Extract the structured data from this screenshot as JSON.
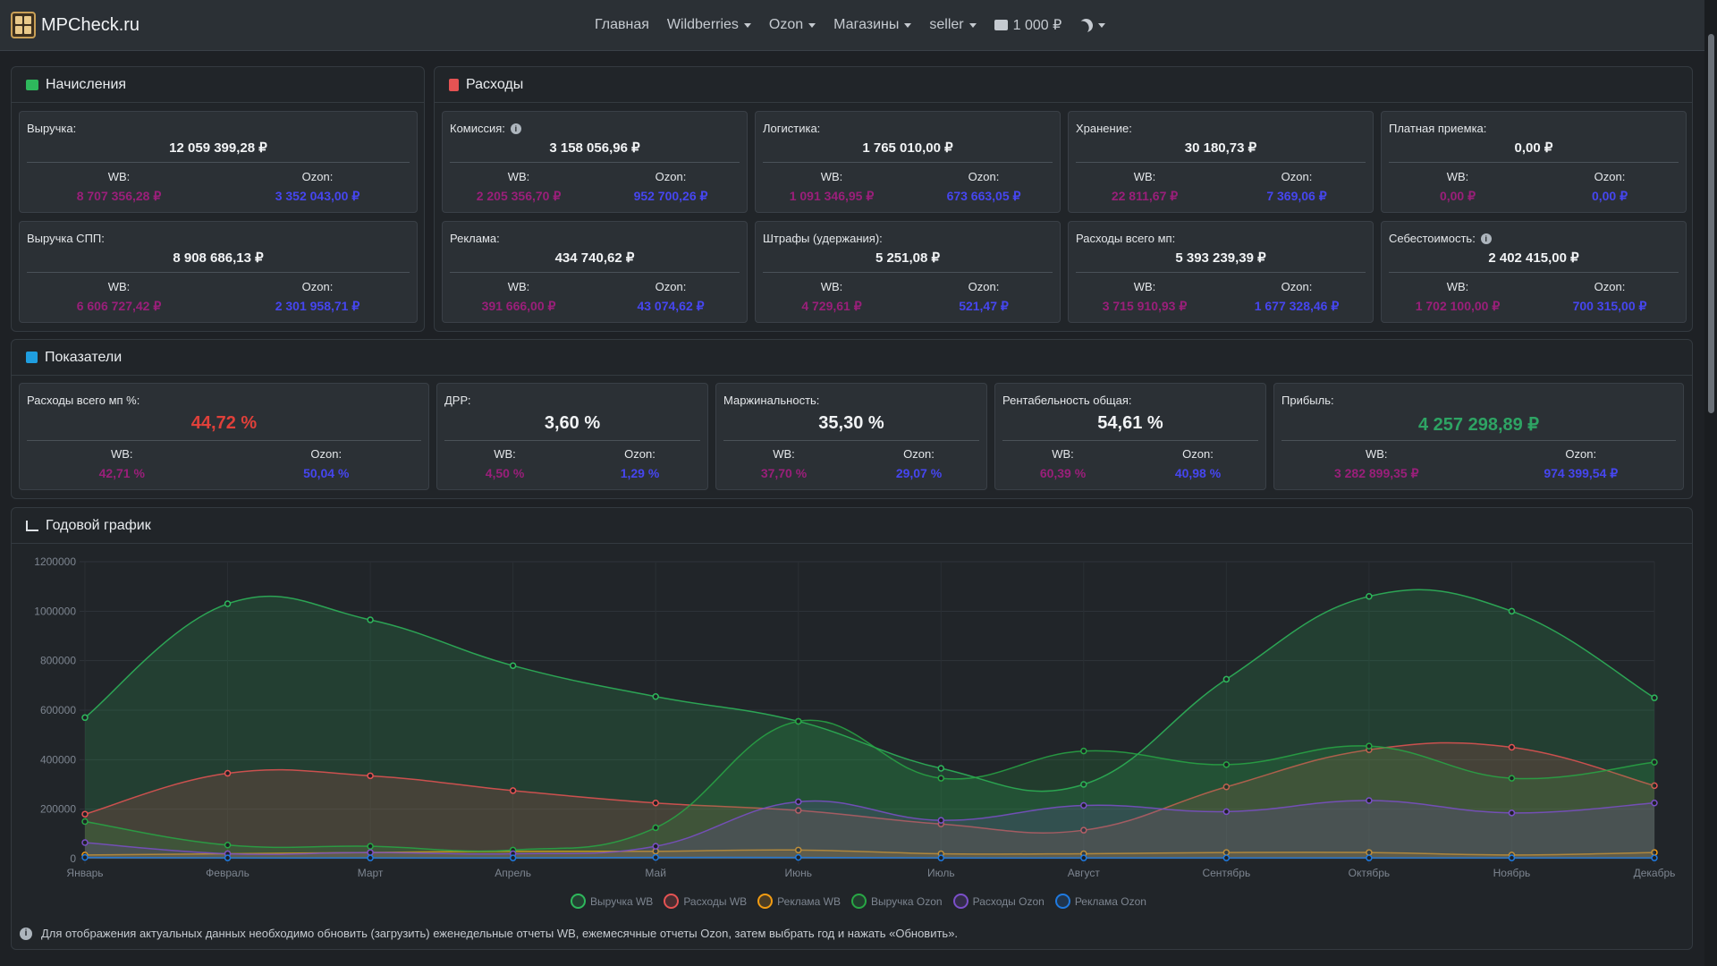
{
  "nav": {
    "brand": "MPCheck.ru",
    "items": [
      {
        "label": "Главная",
        "caret": false
      },
      {
        "label": "Wildberries",
        "caret": true
      },
      {
        "label": "Ozon",
        "caret": true
      },
      {
        "label": "Магазины",
        "caret": true
      },
      {
        "label": "seller",
        "caret": true
      }
    ],
    "balance": "1 000 ₽"
  },
  "accruals": {
    "title": "Начисления",
    "cards": [
      {
        "label": "Выручка:",
        "total": "12 059 399,28 ₽",
        "wb_label": "WB:",
        "wb": "8 707 356,28 ₽",
        "oz_label": "Ozon:",
        "oz": "3 352 043,00 ₽"
      },
      {
        "label": "Выручка СПП:",
        "total": "8 908 686,13 ₽",
        "wb_label": "WB:",
        "wb": "6 606 727,42 ₽",
        "oz_label": "Ozon:",
        "oz": "2 301 958,71 ₽"
      }
    ]
  },
  "expenses": {
    "title": "Расходы",
    "cards": [
      {
        "label": "Комиссия:",
        "info": true,
        "total": "3 158 056,96 ₽",
        "wb_label": "WB:",
        "wb": "2 205 356,70 ₽",
        "oz_label": "Ozon:",
        "oz": "952 700,26 ₽"
      },
      {
        "label": "Логистика:",
        "total": "1 765 010,00 ₽",
        "wb_label": "WB:",
        "wb": "1 091 346,95 ₽",
        "oz_label": "Ozon:",
        "oz": "673 663,05 ₽"
      },
      {
        "label": "Хранение:",
        "total": "30 180,73 ₽",
        "wb_label": "WB:",
        "wb": "22 811,67 ₽",
        "oz_label": "Ozon:",
        "oz": "7 369,06 ₽"
      },
      {
        "label": "Платная приемка:",
        "total": "0,00 ₽",
        "wb_label": "WB:",
        "wb": "0,00 ₽",
        "oz_label": "Ozon:",
        "oz": "0,00 ₽"
      },
      {
        "label": "Реклама:",
        "total": "434 740,62 ₽",
        "wb_label": "WB:",
        "wb": "391 666,00 ₽",
        "oz_label": "Ozon:",
        "oz": "43 074,62 ₽"
      },
      {
        "label": "Штрафы (удержания):",
        "total": "5 251,08 ₽",
        "wb_label": "WB:",
        "wb": "4 729,61 ₽",
        "oz_label": "Ozon:",
        "oz": "521,47 ₽"
      },
      {
        "label": "Расходы всего мп:",
        "total": "5 393 239,39 ₽",
        "wb_label": "WB:",
        "wb": "3 715 910,93 ₽",
        "oz_label": "Ozon:",
        "oz": "1 677 328,46 ₽"
      },
      {
        "label": "Себестоимость:",
        "info": true,
        "total": "2 402 415,00 ₽",
        "wb_label": "WB:",
        "wb": "1 702 100,00 ₽",
        "oz_label": "Ozon:",
        "oz": "700 315,00 ₽"
      }
    ]
  },
  "indicators": {
    "title": "Показатели",
    "cards": [
      {
        "label": "Расходы всего мп %:",
        "total": "44,72 %",
        "tone": "red",
        "wb_label": "WB:",
        "wb": "42,71 %",
        "oz_label": "Ozon:",
        "oz": "50,04 %"
      },
      {
        "label": "ДРР:",
        "total": "3,60 %",
        "tone": "",
        "wb_label": "WB:",
        "wb": "4,50 %",
        "oz_label": "Ozon:",
        "oz": "1,29 %"
      },
      {
        "label": "Маржинальность:",
        "total": "35,30 %",
        "tone": "",
        "wb_label": "WB:",
        "wb": "37,70 %",
        "oz_label": "Ozon:",
        "oz": "29,07 %"
      },
      {
        "label": "Рентабельность общая:",
        "total": "54,61 %",
        "tone": "",
        "wb_label": "WB:",
        "wb": "60,39 %",
        "oz_label": "Ozon:",
        "oz": "40,98 %"
      },
      {
        "label": "Прибыль:",
        "total": "4 257 298,89 ₽",
        "tone": "green",
        "wb_label": "WB:",
        "wb": "3 282 899,35 ₽",
        "oz_label": "Ozon:",
        "oz": "974 399,54 ₽"
      }
    ]
  },
  "annual": {
    "title": "Годовой график",
    "footnote": "Для отображения актуальных данных необходимо обновить (загрузить) еженедельные отчеты WB, ежемесячные отчеты Ozon, затем выбрать год и нажать «Обновить»."
  },
  "chart_data": {
    "type": "area",
    "categories": [
      "Январь",
      "Февраль",
      "Март",
      "Апрель",
      "Май",
      "Июнь",
      "Июль",
      "Август",
      "Сентябрь",
      "Октябрь",
      "Ноябрь",
      "Декабрь"
    ],
    "yticks": [
      0,
      200000,
      400000,
      600000,
      800000,
      1000000,
      1200000
    ],
    "ylim": [
      0,
      1200000
    ],
    "grid": true,
    "legend_position": "bottom",
    "series": [
      {
        "name": "Выручка WB",
        "color": "#2eb85c",
        "values": [
          570000,
          1030000,
          965000,
          780000,
          655000,
          555000,
          365000,
          300000,
          725000,
          1060000,
          1000000,
          650000
        ]
      },
      {
        "name": "Расходы WB",
        "color": "#e55353",
        "values": [
          180000,
          345000,
          335000,
          275000,
          225000,
          195000,
          140000,
          115000,
          290000,
          440000,
          450000,
          295000
        ]
      },
      {
        "name": "Реклама WB",
        "color": "#f39c12",
        "values": [
          15000,
          20000,
          25000,
          30000,
          30000,
          35000,
          20000,
          20000,
          25000,
          25000,
          15000,
          25000
        ]
      },
      {
        "name": "Выручка Ozon",
        "color": "#28a745",
        "values": [
          150000,
          55000,
          50000,
          35000,
          125000,
          555000,
          325000,
          435000,
          380000,
          455000,
          325000,
          390000
        ]
      },
      {
        "name": "Расходы Ozon",
        "color": "#7b4fc9",
        "values": [
          65000,
          20000,
          25000,
          20000,
          50000,
          230000,
          155000,
          215000,
          190000,
          235000,
          185000,
          225000
        ]
      },
      {
        "name": "Реклама Ozon",
        "color": "#1f7ae0",
        "values": [
          5000,
          3000,
          3000,
          3000,
          5000,
          5000,
          3000,
          3000,
          3000,
          3000,
          3000,
          3000
        ]
      }
    ]
  }
}
